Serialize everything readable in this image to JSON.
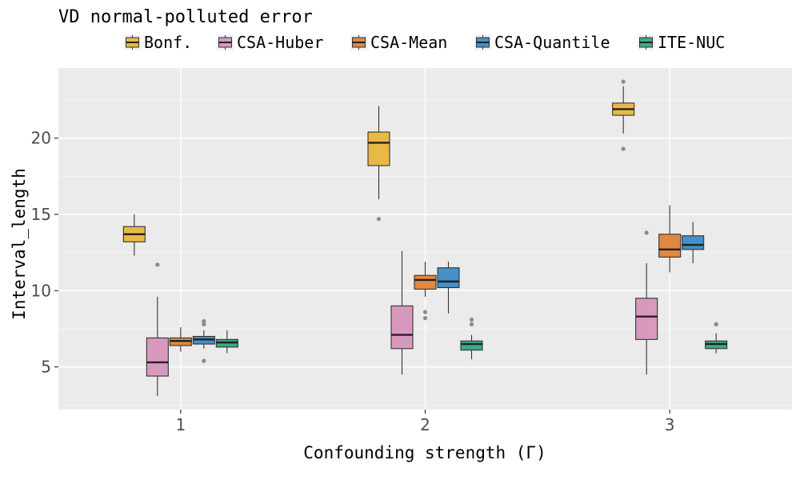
{
  "chart_data": {
    "type": "boxplot",
    "title": "VD normal-polluted error",
    "xlabel": "Confounding strength (Γ)",
    "ylabel": "Interval_length",
    "categories": [
      "1",
      "2",
      "3"
    ],
    "y_ticks": [
      5,
      10,
      15,
      20
    ],
    "y_tick_labels": [
      "5",
      "10",
      "15",
      "20"
    ],
    "ylim": [
      2.2,
      24.6
    ],
    "legend_position": "top",
    "grid": true,
    "series": [
      {
        "name": "Bonf.",
        "color": "#E8B944",
        "boxes": [
          {
            "category": "1",
            "whisker_low": 12.3,
            "q1": 13.2,
            "median": 13.7,
            "q3": 14.2,
            "whisker_high": 15.0,
            "outliers": []
          },
          {
            "category": "2",
            "whisker_low": 16.0,
            "q1": 18.2,
            "median": 19.7,
            "q3": 20.4,
            "whisker_high": 22.1,
            "outliers": [
              14.7
            ]
          },
          {
            "category": "3",
            "whisker_low": 20.3,
            "q1": 21.5,
            "median": 21.9,
            "q3": 22.3,
            "whisker_high": 23.4,
            "outliers": [
              23.7,
              19.3
            ]
          }
        ]
      },
      {
        "name": "CSA-Huber",
        "color": "#D899BF",
        "boxes": [
          {
            "category": "1",
            "whisker_low": 3.1,
            "q1": 4.4,
            "median": 5.3,
            "q3": 6.9,
            "whisker_high": 9.6,
            "outliers": [
              11.7
            ]
          },
          {
            "category": "2",
            "whisker_low": 4.5,
            "q1": 6.2,
            "median": 7.1,
            "q3": 9.0,
            "whisker_high": 12.6,
            "outliers": []
          },
          {
            "category": "3",
            "whisker_low": 4.5,
            "q1": 6.8,
            "median": 8.3,
            "q3": 9.5,
            "whisker_high": 11.8,
            "outliers": [
              13.8
            ]
          }
        ]
      },
      {
        "name": "CSA-Mean",
        "color": "#E08840",
        "boxes": [
          {
            "category": "1",
            "whisker_low": 6.0,
            "q1": 6.4,
            "median": 6.7,
            "q3": 6.9,
            "whisker_high": 7.6,
            "outliers": []
          },
          {
            "category": "2",
            "whisker_low": 9.6,
            "q1": 10.1,
            "median": 10.7,
            "q3": 11.0,
            "whisker_high": 11.9,
            "outliers": [
              8.6,
              8.2
            ]
          },
          {
            "category": "3",
            "whisker_low": 11.2,
            "q1": 12.2,
            "median": 12.7,
            "q3": 13.7,
            "whisker_high": 15.6,
            "outliers": []
          }
        ]
      },
      {
        "name": "CSA-Quantile",
        "color": "#4590C8",
        "boxes": [
          {
            "category": "1",
            "whisker_low": 6.2,
            "q1": 6.5,
            "median": 6.8,
            "q3": 7.0,
            "whisker_high": 7.4,
            "outliers": [
              8.0,
              7.8,
              5.4
            ]
          },
          {
            "category": "2",
            "whisker_low": 8.5,
            "q1": 10.2,
            "median": 10.6,
            "q3": 11.5,
            "whisker_high": 11.9,
            "outliers": []
          },
          {
            "category": "3",
            "whisker_low": 11.8,
            "q1": 12.7,
            "median": 13.0,
            "q3": 13.6,
            "whisker_high": 14.5,
            "outliers": []
          }
        ]
      },
      {
        "name": "ITE-NUC",
        "color": "#3BAA8A",
        "boxes": [
          {
            "category": "1",
            "whisker_low": 5.9,
            "q1": 6.3,
            "median": 6.6,
            "q3": 6.8,
            "whisker_high": 7.4,
            "outliers": []
          },
          {
            "category": "2",
            "whisker_low": 5.5,
            "q1": 6.1,
            "median": 6.5,
            "q3": 6.7,
            "whisker_high": 7.1,
            "outliers": [
              8.1,
              7.8
            ]
          },
          {
            "category": "3",
            "whisker_low": 5.9,
            "q1": 6.2,
            "median": 6.5,
            "q3": 6.7,
            "whisker_high": 7.2,
            "outliers": [
              7.8
            ]
          }
        ]
      }
    ]
  }
}
